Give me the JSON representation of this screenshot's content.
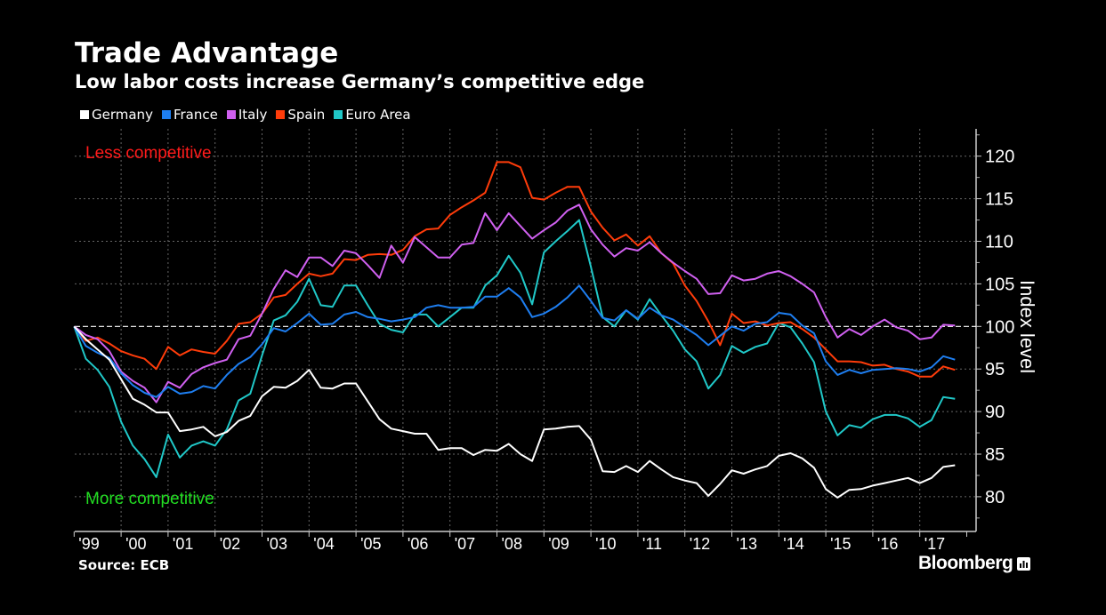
{
  "header": {
    "title": "Trade Advantage",
    "subtitle": "Low labor costs increase Germany’s competitive edge"
  },
  "annotations": {
    "less": "Less competitive",
    "more": "More competitive",
    "less_color": "#ff1a1a",
    "more_color": "#22dd22"
  },
  "footer": {
    "source": "Source: ECB",
    "logo": "Bloomberg"
  },
  "chart_data": {
    "type": "line",
    "title": "Trade Advantage",
    "subtitle": "Low labor costs increase Germany’s competitive edge",
    "ylabel": "Index level",
    "xlabel": "",
    "ylim": [
      76,
      123
    ],
    "yticks": [
      80,
      85,
      90,
      95,
      100,
      105,
      110,
      115,
      120
    ],
    "xtick_labels": [
      "'99",
      "'00",
      "'01",
      "'02",
      "'03",
      "'04",
      "'05",
      "'06",
      "'07",
      "'08",
      "'09",
      "'10",
      "'11",
      "'12",
      "'13",
      "'14",
      "'15",
      "'16",
      "'17"
    ],
    "reference_line": 100,
    "grid": true,
    "legend_placement": "top-left",
    "x": [
      "1999Q1",
      "1999Q2",
      "1999Q3",
      "1999Q4",
      "2000Q1",
      "2000Q2",
      "2000Q3",
      "2000Q4",
      "2001Q1",
      "2001Q2",
      "2001Q3",
      "2001Q4",
      "2002Q1",
      "2002Q2",
      "2002Q3",
      "2002Q4",
      "2003Q1",
      "2003Q2",
      "2003Q3",
      "2003Q4",
      "2004Q1",
      "2004Q2",
      "2004Q3",
      "2004Q4",
      "2005Q1",
      "2005Q2",
      "2005Q3",
      "2005Q4",
      "2006Q1",
      "2006Q2",
      "2006Q3",
      "2006Q4",
      "2007Q1",
      "2007Q2",
      "2007Q3",
      "2007Q4",
      "2008Q1",
      "2008Q2",
      "2008Q3",
      "2008Q4",
      "2009Q1",
      "2009Q2",
      "2009Q3",
      "2009Q4",
      "2010Q1",
      "2010Q2",
      "2010Q3",
      "2010Q4",
      "2011Q1",
      "2011Q2",
      "2011Q3",
      "2011Q4",
      "2012Q1",
      "2012Q2",
      "2012Q3",
      "2012Q4",
      "2013Q1",
      "2013Q2",
      "2013Q3",
      "2013Q4",
      "2014Q1",
      "2014Q2",
      "2014Q3",
      "2014Q4",
      "2015Q1",
      "2015Q2",
      "2015Q3",
      "2015Q4",
      "2016Q1",
      "2016Q2",
      "2016Q3",
      "2016Q4",
      "2017Q1",
      "2017Q2",
      "2017Q3",
      "2017Q4"
    ],
    "series": [
      {
        "name": "Germany",
        "color": "#ffffff",
        "values": [
          100,
          98.5,
          97.3,
          96.1,
          93.8,
          91.5,
          90.8,
          89.9,
          89.9,
          87.7,
          87.9,
          88.2,
          87.1,
          87.6,
          88.9,
          89.5,
          91.8,
          92.9,
          92.8,
          93.6,
          94.9,
          92.8,
          92.7,
          93.3,
          93.3,
          91.2,
          89.1,
          88.0,
          87.7,
          87.4,
          87.4,
          85.5,
          85.7,
          85.7,
          84.9,
          85.5,
          85.4,
          86.2,
          85.0,
          84.2,
          87.9,
          88.0,
          88.2,
          88.3,
          86.7,
          83.0,
          82.9,
          83.6,
          82.9,
          84.2,
          83.2,
          82.3,
          81.9,
          81.6,
          80.1,
          81.5,
          83.1,
          82.7,
          83.2,
          83.6,
          84.8,
          85.1,
          84.5,
          83.4,
          80.9,
          79.9,
          80.8,
          80.9,
          81.3,
          81.6,
          81.9,
          82.2,
          81.6,
          82.2,
          83.5,
          83.7
        ]
      },
      {
        "name": "France",
        "color": "#1e7ef0",
        "values": [
          100,
          97.7,
          96.9,
          96.3,
          94.5,
          93.1,
          92.2,
          91.7,
          92.9,
          92.1,
          92.3,
          93.0,
          92.7,
          94.3,
          95.6,
          96.4,
          97.9,
          99.8,
          99.4,
          100.4,
          101.5,
          100.2,
          100.3,
          101.4,
          101.7,
          101.1,
          100.9,
          100.6,
          100.8,
          101.1,
          102.2,
          102.5,
          102.2,
          102.2,
          102.3,
          103.5,
          103.5,
          104.5,
          103.4,
          101.1,
          101.5,
          102.3,
          103.4,
          104.8,
          103.0,
          101.0,
          100.7,
          101.9,
          100.9,
          102.2,
          101.3,
          100.8,
          99.9,
          99.0,
          97.8,
          98.9,
          100.0,
          99.5,
          100.3,
          100.5,
          101.6,
          101.4,
          100.1,
          99.2,
          95.9,
          94.3,
          94.9,
          94.5,
          94.9,
          95.0,
          95.1,
          95.0,
          94.7,
          95.2,
          96.5,
          96.1
        ]
      },
      {
        "name": "Italy",
        "color": "#d060f0",
        "values": [
          100,
          99.0,
          98.5,
          97.1,
          94.7,
          93.6,
          92.8,
          91.1,
          93.5,
          92.8,
          94.4,
          95.2,
          95.7,
          96.1,
          98.5,
          98.9,
          101.5,
          104.4,
          106.6,
          105.8,
          108.1,
          108.1,
          107.1,
          108.9,
          108.6,
          107.2,
          105.7,
          109.5,
          107.5,
          110.5,
          109.3,
          108.1,
          108.1,
          109.6,
          109.8,
          113.3,
          111.3,
          113.3,
          111.8,
          110.3,
          111.3,
          112.2,
          113.6,
          114.3,
          111.4,
          109.6,
          108.2,
          109.2,
          108.9,
          109.9,
          108.6,
          107.5,
          106.5,
          105.6,
          103.8,
          103.9,
          106.0,
          105.4,
          105.6,
          106.2,
          106.5,
          105.9,
          105.0,
          104.0,
          101.1,
          98.7,
          99.7,
          99.0,
          100.0,
          100.8,
          99.9,
          99.5,
          98.5,
          98.7,
          100.2,
          100.1
        ]
      },
      {
        "name": "Spain",
        "color": "#ff3c0a",
        "values": [
          100,
          98.3,
          98.7,
          98.0,
          97.1,
          96.6,
          96.2,
          95.0,
          97.6,
          96.6,
          97.3,
          97.0,
          96.8,
          98.3,
          100.3,
          100.5,
          101.5,
          103.4,
          103.7,
          105.0,
          106.2,
          105.9,
          106.2,
          107.9,
          107.8,
          108.4,
          108.5,
          108.4,
          109.0,
          110.6,
          111.4,
          111.5,
          113.1,
          114.0,
          114.8,
          115.7,
          119.3,
          119.3,
          118.7,
          115.1,
          114.9,
          115.7,
          116.4,
          116.4,
          113.5,
          111.6,
          110.1,
          110.8,
          109.5,
          110.6,
          108.6,
          107.4,
          104.8,
          103.0,
          100.6,
          97.8,
          101.5,
          100.4,
          100.6,
          100.1,
          100.4,
          100.5,
          99.7,
          98.7,
          97.3,
          95.9,
          95.9,
          95.8,
          95.4,
          95.5,
          95.0,
          94.7,
          94.1,
          94.1,
          95.3,
          94.9
        ]
      },
      {
        "name": "Euro Area",
        "color": "#20c8c8",
        "values": [
          100,
          96.2,
          94.9,
          92.9,
          88.8,
          86.0,
          84.4,
          82.3,
          87.3,
          84.6,
          86.0,
          86.5,
          86.0,
          87.9,
          91.3,
          92.1,
          96.6,
          100.7,
          101.3,
          102.9,
          105.6,
          102.5,
          102.3,
          104.8,
          104.8,
          102.5,
          100.3,
          99.6,
          99.3,
          101.4,
          101.4,
          100.0,
          101.1,
          102.2,
          102.2,
          104.8,
          106.0,
          108.3,
          106.3,
          102.6,
          108.7,
          110.0,
          111.2,
          112.5,
          107.0,
          101.1,
          100.0,
          101.9,
          100.8,
          103.2,
          101.3,
          99.5,
          97.3,
          95.9,
          92.7,
          94.3,
          97.7,
          96.9,
          97.6,
          98.0,
          100.4,
          99.9,
          98.0,
          95.8,
          90.0,
          87.2,
          88.4,
          88.1,
          89.1,
          89.6,
          89.6,
          89.2,
          88.2,
          89.0,
          91.7,
          91.5
        ]
      }
    ]
  }
}
